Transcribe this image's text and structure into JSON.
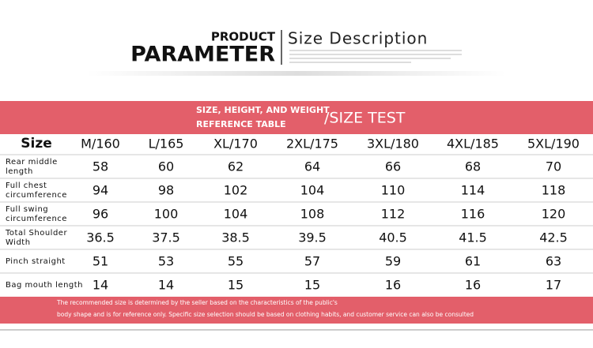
{
  "header": {
    "product": "PRODUCT",
    "parameter": "PARAMETER",
    "description": "Size Description"
  },
  "banner": {
    "line1": "SIZE, HEIGHT, AND WEIGHT",
    "line2": "REFERENCE TABLE",
    "test": "/SIZE TEST"
  },
  "table": {
    "size_label": "Size",
    "columns": [
      "M/160",
      "L/165",
      "XL/170",
      "2XL/175",
      "3XL/180",
      "4XL/185",
      "5XL/190"
    ],
    "rows": [
      {
        "label": [
          "Rear middle",
          "length"
        ],
        "values": [
          58,
          60,
          62,
          64,
          66,
          68,
          70
        ]
      },
      {
        "label": [
          "Full chest",
          "circumference"
        ],
        "values": [
          94,
          98,
          102,
          104,
          110,
          114,
          118
        ]
      },
      {
        "label": [
          "Full swing",
          "circumference"
        ],
        "values": [
          96,
          100,
          104,
          108,
          112,
          116,
          120
        ]
      },
      {
        "label": [
          "Total Shoulder",
          "Width"
        ],
        "values": [
          36.5,
          37.5,
          38.5,
          39.5,
          40.5,
          41.5,
          42.5
        ]
      },
      {
        "label": [
          "Pinch straight"
        ],
        "values": [
          51,
          53,
          55,
          57,
          59,
          61,
          63
        ]
      },
      {
        "label": [
          "Bag mouth length"
        ],
        "values": [
          14,
          14,
          15,
          15,
          16,
          16,
          17
        ]
      }
    ]
  },
  "footer": [
    "The recommended size is determined by the seller based on the characteristics of the public's",
    "body shape and is for reference only. Specific size selection should be based on clothing habits, and customer service can also be consulted"
  ]
}
